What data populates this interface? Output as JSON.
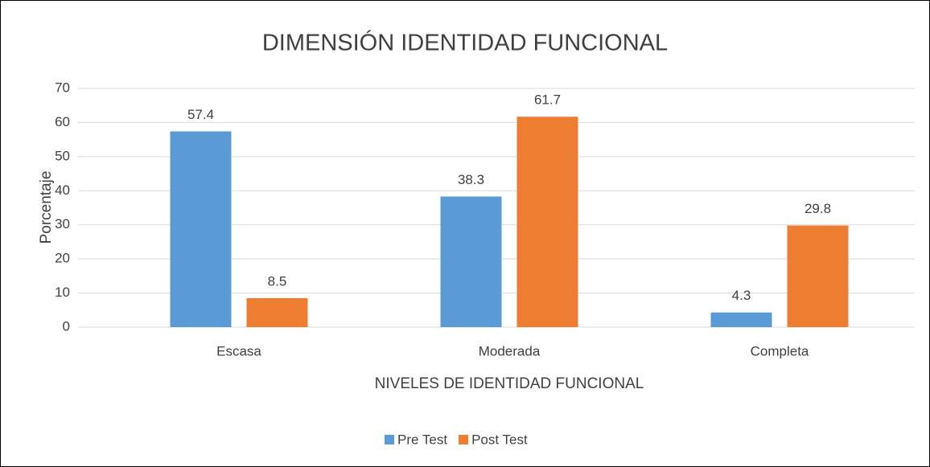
{
  "chart_data": {
    "type": "bar",
    "title": "DIMENSIÓN IDENTIDAD FUNCIONAL",
    "x_label": "NIVELES  DE IDENTIDAD FUNCIONAL",
    "y_label": "Porcentaje",
    "categories": [
      "Escasa",
      "Moderada",
      "Completa"
    ],
    "series": [
      {
        "name": "Pre Test",
        "color": "#5b9bd5",
        "values": [
          57.4,
          38.3,
          4.3
        ]
      },
      {
        "name": "Post Test",
        "color": "#ed7d31",
        "values": [
          8.5,
          61.7,
          29.8
        ]
      }
    ],
    "ylim": [
      0,
      70
    ],
    "yticks": [
      0,
      10,
      20,
      30,
      40,
      50,
      60,
      70
    ],
    "grid": true,
    "legend": "bottom"
  }
}
